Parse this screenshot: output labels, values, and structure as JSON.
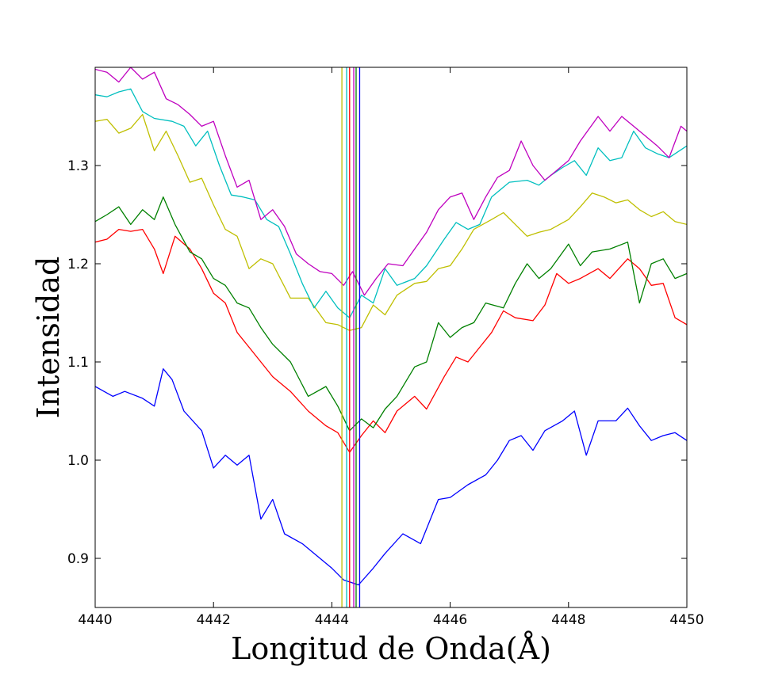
{
  "chart_data": {
    "type": "line",
    "title": "",
    "xlabel": "Longitud de Onda(Å)",
    "ylabel": "Intensidad",
    "xlim": [
      4440,
      4450
    ],
    "ylim": [
      0.85,
      1.4
    ],
    "xticks": [
      4440,
      4442,
      4444,
      4446,
      4448,
      4450
    ],
    "xtick_labels": [
      "4440",
      "4442",
      "4444",
      "4446",
      "4448",
      "4450"
    ],
    "yticks": [
      0.9,
      1.0,
      1.1,
      1.2,
      1.3
    ],
    "ytick_labels": [
      "0.9",
      "1.0",
      "1.1",
      "1.2",
      "1.3"
    ],
    "grid": false,
    "legend": "none",
    "series": [
      {
        "color": "#0000ff",
        "points": [
          [
            4440,
            1.075
          ],
          [
            4440.3,
            1.065
          ],
          [
            4440.5,
            1.07
          ],
          [
            4440.8,
            1.063
          ],
          [
            4441.0,
            1.055
          ],
          [
            4441.15,
            1.093
          ],
          [
            4441.3,
            1.082
          ],
          [
            4441.5,
            1.05
          ],
          [
            4441.8,
            1.03
          ],
          [
            4442.0,
            0.992
          ],
          [
            4442.2,
            1.005
          ],
          [
            4442.4,
            0.995
          ],
          [
            4442.6,
            1.005
          ],
          [
            4442.8,
            0.94
          ],
          [
            4443.0,
            0.96
          ],
          [
            4443.2,
            0.925
          ],
          [
            4443.5,
            0.915
          ],
          [
            4443.8,
            0.9
          ],
          [
            4444.0,
            0.89
          ],
          [
            4444.2,
            0.878
          ],
          [
            4444.45,
            0.873
          ],
          [
            4444.7,
            0.89
          ],
          [
            4444.9,
            0.905
          ],
          [
            4445.2,
            0.925
          ],
          [
            4445.5,
            0.915
          ],
          [
            4445.8,
            0.96
          ],
          [
            4446.0,
            0.962
          ],
          [
            4446.3,
            0.975
          ],
          [
            4446.6,
            0.985
          ],
          [
            4446.8,
            1.0
          ],
          [
            4447.0,
            1.02
          ],
          [
            4447.2,
            1.025
          ],
          [
            4447.4,
            1.01
          ],
          [
            4447.6,
            1.03
          ],
          [
            4447.9,
            1.04
          ],
          [
            4448.1,
            1.05
          ],
          [
            4448.3,
            1.005
          ],
          [
            4448.5,
            1.04
          ],
          [
            4448.8,
            1.04
          ],
          [
            4449.0,
            1.053
          ],
          [
            4449.2,
            1.035
          ],
          [
            4449.4,
            1.02
          ],
          [
            4449.6,
            1.025
          ],
          [
            4449.8,
            1.028
          ],
          [
            4450.0,
            1.02
          ]
        ]
      },
      {
        "color": "#ff0000",
        "points": [
          [
            4440,
            1.222
          ],
          [
            4440.2,
            1.225
          ],
          [
            4440.4,
            1.235
          ],
          [
            4440.6,
            1.233
          ],
          [
            4440.8,
            1.235
          ],
          [
            4441.0,
            1.215
          ],
          [
            4441.15,
            1.19
          ],
          [
            4441.35,
            1.228
          ],
          [
            4441.6,
            1.215
          ],
          [
            4441.8,
            1.195
          ],
          [
            4442.0,
            1.17
          ],
          [
            4442.2,
            1.16
          ],
          [
            4442.4,
            1.13
          ],
          [
            4442.6,
            1.115
          ],
          [
            4442.8,
            1.1
          ],
          [
            4443.0,
            1.085
          ],
          [
            4443.3,
            1.07
          ],
          [
            4443.6,
            1.05
          ],
          [
            4443.9,
            1.035
          ],
          [
            4444.1,
            1.028
          ],
          [
            4444.3,
            1.008
          ],
          [
            4444.5,
            1.025
          ],
          [
            4444.7,
            1.04
          ],
          [
            4444.9,
            1.028
          ],
          [
            4445.1,
            1.05
          ],
          [
            4445.4,
            1.065
          ],
          [
            4445.6,
            1.052
          ],
          [
            4445.9,
            1.085
          ],
          [
            4446.1,
            1.105
          ],
          [
            4446.3,
            1.1
          ],
          [
            4446.5,
            1.115
          ],
          [
            4446.7,
            1.13
          ],
          [
            4446.9,
            1.152
          ],
          [
            4447.1,
            1.145
          ],
          [
            4447.4,
            1.142
          ],
          [
            4447.6,
            1.158
          ],
          [
            4447.8,
            1.19
          ],
          [
            4448.0,
            1.18
          ],
          [
            4448.2,
            1.185
          ],
          [
            4448.5,
            1.195
          ],
          [
            4448.7,
            1.185
          ],
          [
            4449.0,
            1.205
          ],
          [
            4449.2,
            1.195
          ],
          [
            4449.4,
            1.178
          ],
          [
            4449.6,
            1.18
          ],
          [
            4449.8,
            1.145
          ],
          [
            4450.0,
            1.138
          ]
        ]
      },
      {
        "color": "#008000",
        "points": [
          [
            4440,
            1.243
          ],
          [
            4440.2,
            1.25
          ],
          [
            4440.4,
            1.258
          ],
          [
            4440.6,
            1.24
          ],
          [
            4440.8,
            1.255
          ],
          [
            4441.0,
            1.245
          ],
          [
            4441.15,
            1.268
          ],
          [
            4441.35,
            1.24
          ],
          [
            4441.6,
            1.212
          ],
          [
            4441.8,
            1.205
          ],
          [
            4442.0,
            1.185
          ],
          [
            4442.2,
            1.178
          ],
          [
            4442.4,
            1.16
          ],
          [
            4442.6,
            1.155
          ],
          [
            4442.8,
            1.135
          ],
          [
            4443.0,
            1.118
          ],
          [
            4443.3,
            1.1
          ],
          [
            4443.6,
            1.065
          ],
          [
            4443.9,
            1.075
          ],
          [
            4444.1,
            1.055
          ],
          [
            4444.3,
            1.03
          ],
          [
            4444.5,
            1.042
          ],
          [
            4444.7,
            1.033
          ],
          [
            4444.9,
            1.052
          ],
          [
            4445.1,
            1.065
          ],
          [
            4445.4,
            1.095
          ],
          [
            4445.6,
            1.1
          ],
          [
            4445.8,
            1.14
          ],
          [
            4446.0,
            1.125
          ],
          [
            4446.2,
            1.135
          ],
          [
            4446.4,
            1.14
          ],
          [
            4446.6,
            1.16
          ],
          [
            4446.9,
            1.155
          ],
          [
            4447.1,
            1.18
          ],
          [
            4447.3,
            1.2
          ],
          [
            4447.5,
            1.185
          ],
          [
            4447.7,
            1.195
          ],
          [
            4448.0,
            1.22
          ],
          [
            4448.2,
            1.198
          ],
          [
            4448.4,
            1.212
          ],
          [
            4448.7,
            1.215
          ],
          [
            4449.0,
            1.222
          ],
          [
            4449.2,
            1.16
          ],
          [
            4449.4,
            1.2
          ],
          [
            4449.6,
            1.205
          ],
          [
            4449.8,
            1.185
          ],
          [
            4450.0,
            1.19
          ]
        ]
      },
      {
        "color": "#bfbf00",
        "points": [
          [
            4440,
            1.345
          ],
          [
            4440.2,
            1.347
          ],
          [
            4440.4,
            1.333
          ],
          [
            4440.6,
            1.338
          ],
          [
            4440.8,
            1.352
          ],
          [
            4441.0,
            1.315
          ],
          [
            4441.2,
            1.335
          ],
          [
            4441.4,
            1.31
          ],
          [
            4441.6,
            1.283
          ],
          [
            4441.8,
            1.287
          ],
          [
            4442.0,
            1.26
          ],
          [
            4442.2,
            1.235
          ],
          [
            4442.4,
            1.228
          ],
          [
            4442.6,
            1.195
          ],
          [
            4442.8,
            1.205
          ],
          [
            4443.0,
            1.2
          ],
          [
            4443.3,
            1.165
          ],
          [
            4443.6,
            1.165
          ],
          [
            4443.9,
            1.14
          ],
          [
            4444.1,
            1.138
          ],
          [
            4444.3,
            1.132
          ],
          [
            4444.5,
            1.135
          ],
          [
            4444.7,
            1.158
          ],
          [
            4444.9,
            1.148
          ],
          [
            4445.1,
            1.168
          ],
          [
            4445.4,
            1.18
          ],
          [
            4445.6,
            1.182
          ],
          [
            4445.8,
            1.195
          ],
          [
            4446.0,
            1.198
          ],
          [
            4446.2,
            1.215
          ],
          [
            4446.4,
            1.235
          ],
          [
            4446.7,
            1.245
          ],
          [
            4446.9,
            1.252
          ],
          [
            4447.1,
            1.24
          ],
          [
            4447.3,
            1.228
          ],
          [
            4447.5,
            1.232
          ],
          [
            4447.7,
            1.235
          ],
          [
            4448.0,
            1.245
          ],
          [
            4448.2,
            1.258
          ],
          [
            4448.4,
            1.272
          ],
          [
            4448.6,
            1.268
          ],
          [
            4448.8,
            1.262
          ],
          [
            4449.0,
            1.265
          ],
          [
            4449.2,
            1.255
          ],
          [
            4449.4,
            1.248
          ],
          [
            4449.6,
            1.253
          ],
          [
            4449.8,
            1.243
          ],
          [
            4450.0,
            1.24
          ]
        ]
      },
      {
        "color": "#00bfbf",
        "points": [
          [
            4440,
            1.372
          ],
          [
            4440.2,
            1.37
          ],
          [
            4440.4,
            1.375
          ],
          [
            4440.6,
            1.378
          ],
          [
            4440.8,
            1.355
          ],
          [
            4441.0,
            1.348
          ],
          [
            4441.3,
            1.345
          ],
          [
            4441.5,
            1.34
          ],
          [
            4441.7,
            1.32
          ],
          [
            4441.9,
            1.335
          ],
          [
            4442.1,
            1.3
          ],
          [
            4442.3,
            1.27
          ],
          [
            4442.5,
            1.268
          ],
          [
            4442.7,
            1.265
          ],
          [
            4442.9,
            1.245
          ],
          [
            4443.1,
            1.238
          ],
          [
            4443.3,
            1.21
          ],
          [
            4443.5,
            1.18
          ],
          [
            4443.7,
            1.155
          ],
          [
            4443.9,
            1.172
          ],
          [
            4444.1,
            1.155
          ],
          [
            4444.3,
            1.145
          ],
          [
            4444.5,
            1.168
          ],
          [
            4444.7,
            1.16
          ],
          [
            4444.9,
            1.195
          ],
          [
            4445.1,
            1.178
          ],
          [
            4445.4,
            1.185
          ],
          [
            4445.6,
            1.198
          ],
          [
            4445.9,
            1.225
          ],
          [
            4446.1,
            1.242
          ],
          [
            4446.3,
            1.235
          ],
          [
            4446.5,
            1.24
          ],
          [
            4446.7,
            1.268
          ],
          [
            4447.0,
            1.283
          ],
          [
            4447.3,
            1.285
          ],
          [
            4447.5,
            1.28
          ],
          [
            4447.7,
            1.29
          ],
          [
            4447.9,
            1.298
          ],
          [
            4448.1,
            1.305
          ],
          [
            4448.3,
            1.29
          ],
          [
            4448.5,
            1.318
          ],
          [
            4448.7,
            1.305
          ],
          [
            4448.9,
            1.308
          ],
          [
            4449.1,
            1.335
          ],
          [
            4449.3,
            1.318
          ],
          [
            4449.5,
            1.312
          ],
          [
            4449.7,
            1.308
          ],
          [
            4450.0,
            1.32
          ]
        ]
      },
      {
        "color": "#bf00bf",
        "points": [
          [
            4440,
            1.398
          ],
          [
            4440.2,
            1.395
          ],
          [
            4440.4,
            1.385
          ],
          [
            4440.6,
            1.4
          ],
          [
            4440.8,
            1.388
          ],
          [
            4441.0,
            1.395
          ],
          [
            4441.2,
            1.368
          ],
          [
            4441.4,
            1.362
          ],
          [
            4441.6,
            1.352
          ],
          [
            4441.8,
            1.34
          ],
          [
            4442.0,
            1.345
          ],
          [
            4442.2,
            1.31
          ],
          [
            4442.4,
            1.278
          ],
          [
            4442.6,
            1.285
          ],
          [
            4442.8,
            1.245
          ],
          [
            4443.0,
            1.255
          ],
          [
            4443.2,
            1.238
          ],
          [
            4443.4,
            1.21
          ],
          [
            4443.6,
            1.2
          ],
          [
            4443.8,
            1.192
          ],
          [
            4444.0,
            1.19
          ],
          [
            4444.2,
            1.178
          ],
          [
            4444.35,
            1.192
          ],
          [
            4444.55,
            1.168
          ],
          [
            4444.75,
            1.185
          ],
          [
            4444.95,
            1.2
          ],
          [
            4445.2,
            1.198
          ],
          [
            4445.4,
            1.215
          ],
          [
            4445.6,
            1.232
          ],
          [
            4445.8,
            1.255
          ],
          [
            4446.0,
            1.268
          ],
          [
            4446.2,
            1.272
          ],
          [
            4446.4,
            1.245
          ],
          [
            4446.6,
            1.268
          ],
          [
            4446.8,
            1.288
          ],
          [
            4447.0,
            1.295
          ],
          [
            4447.2,
            1.325
          ],
          [
            4447.4,
            1.3
          ],
          [
            4447.6,
            1.285
          ],
          [
            4447.8,
            1.295
          ],
          [
            4448.0,
            1.305
          ],
          [
            4448.2,
            1.325
          ],
          [
            4448.5,
            1.35
          ],
          [
            4448.7,
            1.335
          ],
          [
            4448.9,
            1.35
          ],
          [
            4449.1,
            1.34
          ],
          [
            4449.3,
            1.33
          ],
          [
            4449.5,
            1.32
          ],
          [
            4449.7,
            1.308
          ],
          [
            4449.9,
            1.34
          ],
          [
            4450.0,
            1.335
          ]
        ]
      }
    ],
    "vertical_lines": [
      {
        "x": 4444.17,
        "color": "#bfbf00"
      },
      {
        "x": 4444.25,
        "color": "#00bfbf"
      },
      {
        "x": 4444.3,
        "color": "#ff0000"
      },
      {
        "x": 4444.37,
        "color": "#bf00bf"
      },
      {
        "x": 4444.41,
        "color": "#008000"
      },
      {
        "x": 4444.47,
        "color": "#0000ff"
      }
    ]
  }
}
